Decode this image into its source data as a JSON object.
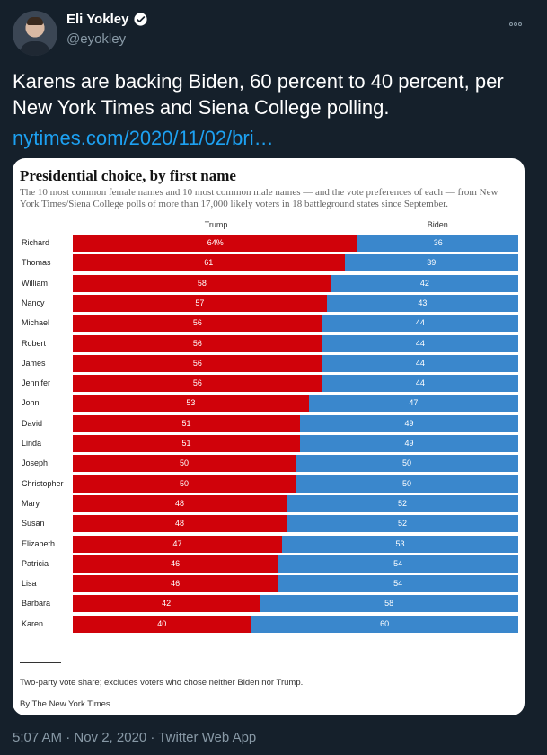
{
  "user": {
    "name": "Eli Yokley",
    "handle": "@eyokley"
  },
  "tweet": {
    "text": "Karens are backing Biden, 60 percent to 40 percent, per New York Times and Siena College polling.",
    "link": "nytimes.com/2020/11/02/bri…",
    "timestamp": "5:07 AM · Nov 2, 2020 · Twitter Web App"
  },
  "colors": {
    "trump": "#d0020a",
    "biden": "#3a87cc",
    "background": "#15202b",
    "link": "#1da1f2"
  },
  "chart_data": {
    "type": "bar",
    "orientation": "horizontal",
    "stacked": true,
    "title": "Presidential choice, by first name",
    "subtitle": "The 10 most common female names and 10 most common male names — and the vote preferences of each — from New York Times/Siena College polls of more than 17,000 likely voters in 18 battleground states since September.",
    "note": "Two-party vote share; excludes voters who chose neither Biden nor Trump.",
    "source": "By The New York Times",
    "categories": [
      "Richard",
      "Thomas",
      "William",
      "Nancy",
      "Michael",
      "Robert",
      "James",
      "Jennifer",
      "John",
      "David",
      "Linda",
      "Joseph",
      "Christopher",
      "Mary",
      "Susan",
      "Elizabeth",
      "Patricia",
      "Lisa",
      "Barbara",
      "Karen"
    ],
    "series": [
      {
        "name": "Trump",
        "values": [
          64,
          61,
          58,
          57,
          56,
          56,
          56,
          56,
          53,
          51,
          51,
          50,
          50,
          48,
          48,
          47,
          46,
          46,
          42,
          40
        ],
        "labels": [
          "64%",
          "61",
          "58",
          "57",
          "56",
          "56",
          "56",
          "56",
          "53",
          "51",
          "51",
          "50",
          "50",
          "48",
          "48",
          "47",
          "46",
          "46",
          "42",
          "40"
        ]
      },
      {
        "name": "Biden",
        "values": [
          36,
          39,
          42,
          43,
          44,
          44,
          44,
          44,
          47,
          49,
          49,
          50,
          50,
          52,
          52,
          53,
          54,
          54,
          58,
          60
        ],
        "labels": [
          "36",
          "39",
          "42",
          "43",
          "44",
          "44",
          "44",
          "44",
          "47",
          "49",
          "49",
          "50",
          "50",
          "52",
          "52",
          "53",
          "54",
          "54",
          "58",
          "60"
        ]
      }
    ],
    "xlim": [
      0,
      100
    ]
  }
}
